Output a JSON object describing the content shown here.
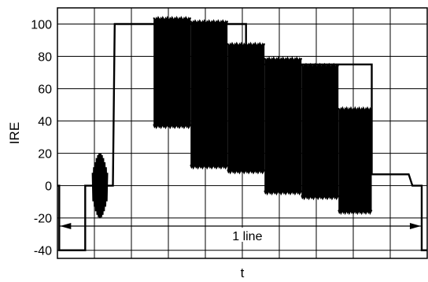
{
  "chart_data": {
    "type": "line",
    "title": "",
    "xlabel": "t",
    "ylabel": "IRE",
    "ylim": [
      -45,
      110
    ],
    "yticks": [
      -40,
      -20,
      0,
      20,
      40,
      60,
      80,
      100
    ],
    "ytick_labels": [
      "-40",
      "-20",
      "0",
      "20",
      "40",
      "60",
      "80",
      "100"
    ],
    "x_divisions": 10,
    "xlim": [
      0,
      10
    ],
    "grid": true,
    "legend": "none",
    "line_color": "#000000",
    "baseline": [
      [
        0,
        0
      ],
      [
        0.05,
        0
      ],
      [
        0.05,
        -40
      ],
      [
        0.75,
        -40
      ],
      [
        0.75,
        0
      ],
      [
        0.95,
        0
      ],
      [
        1.25,
        0
      ],
      [
        1.35,
        0
      ],
      [
        1.5,
        0
      ],
      [
        1.55,
        100
      ],
      [
        1.65,
        100
      ],
      [
        2.55,
        100
      ],
      [
        2.6,
        100
      ],
      [
        5.1,
        100
      ],
      [
        5.1,
        75
      ],
      [
        5.5,
        75
      ],
      [
        5.8,
        75
      ],
      [
        5.8,
        75
      ],
      [
        8.5,
        75
      ],
      [
        8.5,
        7
      ],
      [
        9.45,
        7
      ],
      [
        9.5,
        7
      ],
      [
        9.6,
        0
      ],
      [
        9.85,
        0
      ],
      [
        9.85,
        -40
      ],
      [
        10,
        -40
      ]
    ],
    "color_burst": {
      "x_start": 0.95,
      "x_end": 1.35,
      "high": 20,
      "low": -20
    },
    "chroma_packets": [
      {
        "x_start": 2.6,
        "x_end": 3.6,
        "high": 103,
        "low": 37
      },
      {
        "x_start": 3.6,
        "x_end": 4.6,
        "high": 101,
        "low": 12
      },
      {
        "x_start": 4.6,
        "x_end": 5.6,
        "high": 87,
        "low": 9
      },
      {
        "x_start": 5.6,
        "x_end": 6.6,
        "high": 78,
        "low": -4
      },
      {
        "x_start": 6.6,
        "x_end": 7.6,
        "high": 74,
        "low": -7
      },
      {
        "x_start": 7.6,
        "x_end": 8.5,
        "high": 47,
        "low": -16
      }
    ],
    "annotation": {
      "text": "1 line",
      "x_start": 0.05,
      "x_end": 9.85,
      "y": -25
    }
  }
}
